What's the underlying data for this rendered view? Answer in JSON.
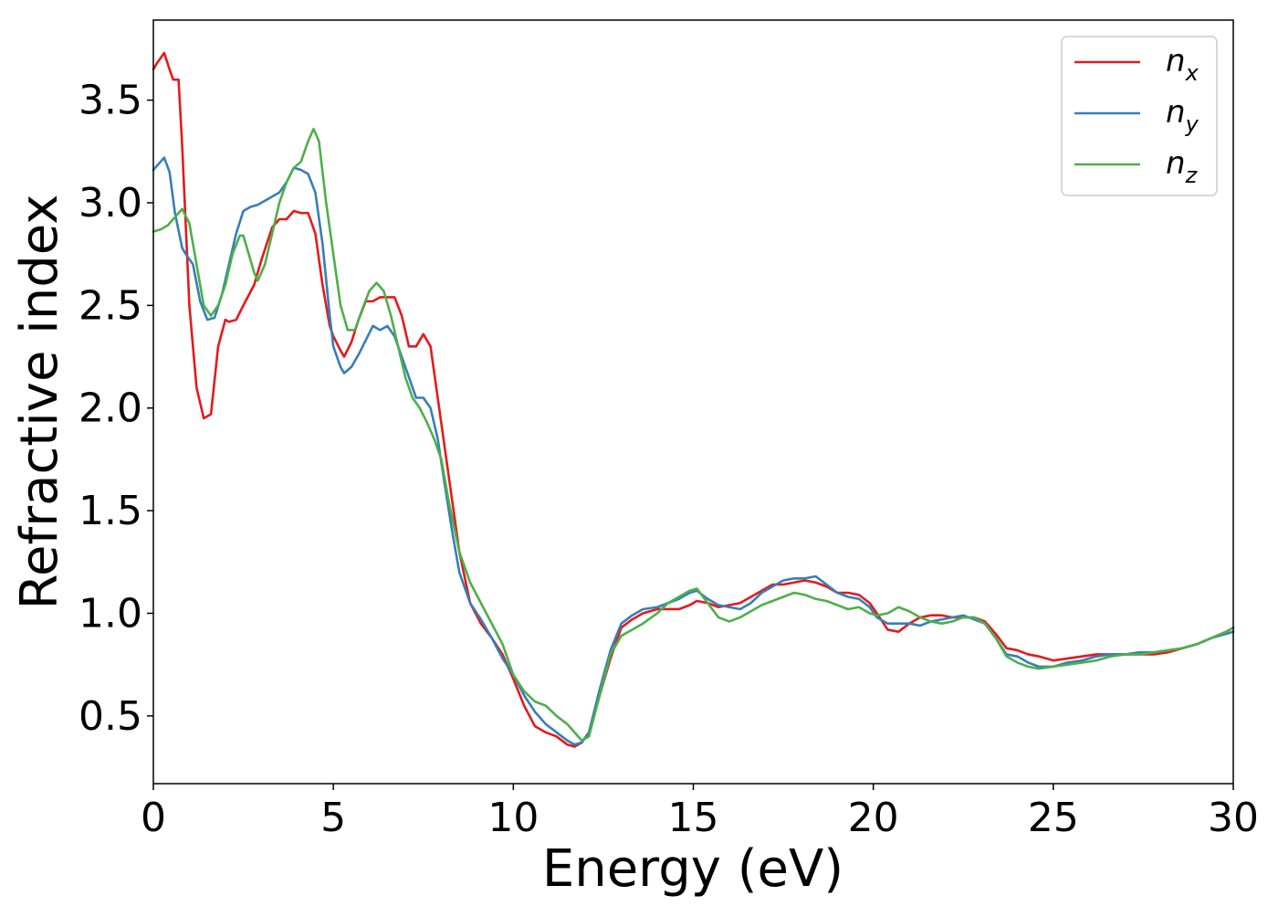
{
  "chart_data": {
    "type": "line",
    "xlabel": "Energy (eV)",
    "ylabel": "Refractive index",
    "xlim": [
      0,
      30
    ],
    "ylim": [
      0.17,
      3.89
    ],
    "x_ticks": [
      0,
      5,
      10,
      15,
      20,
      25,
      30
    ],
    "y_ticks": [
      0.5,
      1.0,
      1.5,
      2.0,
      2.5,
      3.0,
      3.5
    ],
    "x_tick_labels": [
      "0",
      "5",
      "10",
      "15",
      "20",
      "25",
      "30"
    ],
    "y_tick_labels": [
      "0.5",
      "1.0",
      "1.5",
      "2.0",
      "2.5",
      "3.0",
      "3.5"
    ],
    "grid": false,
    "legend_position": "top-right",
    "series": [
      {
        "name": "n_x",
        "label_base": "n",
        "label_sub": "x",
        "color": "#e41a1c",
        "x": [
          0,
          0.1,
          0.3,
          0.45,
          0.55,
          0.7,
          0.8,
          1.0,
          1.2,
          1.4,
          1.6,
          1.8,
          2.0,
          2.1,
          2.3,
          2.5,
          2.8,
          3.0,
          3.3,
          3.5,
          3.7,
          3.9,
          4.1,
          4.3,
          4.5,
          4.7,
          4.9,
          5.0,
          5.2,
          5.3,
          5.5,
          5.7,
          5.9,
          6.1,
          6.3,
          6.5,
          6.7,
          6.9,
          7.1,
          7.3,
          7.5,
          7.7,
          7.9,
          8.1,
          8.3,
          8.5,
          8.8,
          9.1,
          9.4,
          9.7,
          10.0,
          10.3,
          10.6,
          10.9,
          11.2,
          11.5,
          11.7,
          11.9,
          12.1,
          12.4,
          12.7,
          13.0,
          13.3,
          13.6,
          14.0,
          14.3,
          14.6,
          14.9,
          15.1,
          15.4,
          15.7,
          16.0,
          16.3,
          16.6,
          16.9,
          17.2,
          17.5,
          17.8,
          18.1,
          18.4,
          18.7,
          19.0,
          19.3,
          19.6,
          19.9,
          20.1,
          20.4,
          20.7,
          21.0,
          21.3,
          21.6,
          21.9,
          22.2,
          22.5,
          22.8,
          23.1,
          23.4,
          23.7,
          24.0,
          24.3,
          24.6,
          25.0,
          25.4,
          25.8,
          26.2,
          26.6,
          27.0,
          27.4,
          27.8,
          28.2,
          28.6,
          29.0,
          29.4,
          29.8,
          30.0
        ],
        "y": [
          3.65,
          3.68,
          3.73,
          3.65,
          3.6,
          3.6,
          3.28,
          2.5,
          2.1,
          1.95,
          1.97,
          2.3,
          2.43,
          2.42,
          2.43,
          2.5,
          2.6,
          2.72,
          2.88,
          2.92,
          2.92,
          2.96,
          2.95,
          2.95,
          2.85,
          2.6,
          2.4,
          2.35,
          2.28,
          2.25,
          2.32,
          2.43,
          2.52,
          2.52,
          2.54,
          2.54,
          2.54,
          2.45,
          2.3,
          2.3,
          2.36,
          2.3,
          2.05,
          1.8,
          1.55,
          1.3,
          1.05,
          0.95,
          0.88,
          0.8,
          0.68,
          0.55,
          0.45,
          0.42,
          0.4,
          0.36,
          0.35,
          0.37,
          0.42,
          0.6,
          0.78,
          0.93,
          0.97,
          1.0,
          1.02,
          1.02,
          1.02,
          1.04,
          1.06,
          1.05,
          1.03,
          1.04,
          1.05,
          1.08,
          1.11,
          1.14,
          1.14,
          1.15,
          1.16,
          1.15,
          1.13,
          1.1,
          1.1,
          1.09,
          1.05,
          1.0,
          0.92,
          0.91,
          0.95,
          0.98,
          0.99,
          0.99,
          0.98,
          0.98,
          0.98,
          0.96,
          0.9,
          0.83,
          0.82,
          0.8,
          0.79,
          0.77,
          0.78,
          0.79,
          0.8,
          0.8,
          0.8,
          0.8,
          0.8,
          0.81,
          0.83,
          0.85,
          0.88,
          0.91,
          0.93
        ]
      },
      {
        "name": "n_y",
        "label_base": "n",
        "label_sub": "y",
        "color": "#377eb8",
        "x": [
          0,
          0.1,
          0.3,
          0.45,
          0.6,
          0.8,
          0.9,
          1.1,
          1.3,
          1.5,
          1.7,
          1.9,
          2.1,
          2.3,
          2.5,
          2.7,
          2.9,
          3.1,
          3.3,
          3.5,
          3.7,
          3.9,
          4.1,
          4.3,
          4.5,
          4.7,
          4.9,
          5.0,
          5.2,
          5.3,
          5.5,
          5.7,
          5.9,
          6.1,
          6.3,
          6.5,
          6.7,
          6.9,
          7.1,
          7.3,
          7.5,
          7.7,
          7.9,
          8.1,
          8.3,
          8.5,
          8.8,
          9.1,
          9.4,
          9.7,
          10.0,
          10.3,
          10.6,
          10.9,
          11.2,
          11.5,
          11.7,
          11.9,
          12.1,
          12.4,
          12.7,
          13.0,
          13.3,
          13.6,
          14.0,
          14.3,
          14.6,
          14.9,
          15.1,
          15.4,
          15.7,
          16.0,
          16.3,
          16.6,
          16.9,
          17.2,
          17.5,
          17.8,
          18.1,
          18.4,
          18.7,
          19.0,
          19.3,
          19.6,
          19.9,
          20.1,
          20.4,
          20.7,
          21.0,
          21.3,
          21.6,
          21.9,
          22.2,
          22.5,
          22.8,
          23.1,
          23.4,
          23.7,
          24.0,
          24.3,
          24.6,
          25.0,
          25.4,
          25.8,
          26.2,
          26.6,
          27.0,
          27.4,
          27.8,
          28.2,
          28.6,
          29.0,
          29.4,
          29.8,
          30.0
        ],
        "y": [
          3.16,
          3.18,
          3.22,
          3.15,
          2.95,
          2.78,
          2.75,
          2.7,
          2.52,
          2.43,
          2.44,
          2.55,
          2.7,
          2.85,
          2.96,
          2.98,
          2.99,
          3.01,
          3.03,
          3.05,
          3.1,
          3.17,
          3.16,
          3.14,
          3.05,
          2.8,
          2.45,
          2.3,
          2.2,
          2.17,
          2.2,
          2.26,
          2.33,
          2.4,
          2.38,
          2.4,
          2.35,
          2.25,
          2.15,
          2.05,
          2.05,
          2.0,
          1.85,
          1.62,
          1.4,
          1.2,
          1.05,
          0.97,
          0.88,
          0.78,
          0.7,
          0.6,
          0.52,
          0.46,
          0.42,
          0.38,
          0.36,
          0.37,
          0.42,
          0.63,
          0.82,
          0.95,
          0.99,
          1.02,
          1.03,
          1.05,
          1.07,
          1.1,
          1.11,
          1.07,
          1.04,
          1.03,
          1.02,
          1.05,
          1.1,
          1.13,
          1.16,
          1.17,
          1.17,
          1.18,
          1.14,
          1.1,
          1.08,
          1.07,
          1.03,
          0.98,
          0.95,
          0.95,
          0.95,
          0.94,
          0.96,
          0.97,
          0.98,
          0.99,
          0.97,
          0.95,
          0.88,
          0.8,
          0.79,
          0.76,
          0.74,
          0.74,
          0.76,
          0.77,
          0.79,
          0.8,
          0.8,
          0.81,
          0.81,
          0.82,
          0.83,
          0.85,
          0.88,
          0.9,
          0.91
        ]
      },
      {
        "name": "n_z",
        "label_base": "n",
        "label_sub": "z",
        "color": "#4daf4a",
        "x": [
          0,
          0.2,
          0.4,
          0.6,
          0.8,
          1.0,
          1.2,
          1.4,
          1.6,
          1.8,
          2.0,
          2.2,
          2.4,
          2.5,
          2.6,
          2.8,
          2.9,
          3.1,
          3.3,
          3.5,
          3.7,
          3.9,
          4.1,
          4.3,
          4.45,
          4.6,
          4.8,
          5.0,
          5.2,
          5.4,
          5.6,
          5.8,
          6.0,
          6.2,
          6.4,
          6.6,
          6.8,
          7.0,
          7.2,
          7.4,
          7.6,
          7.8,
          8.0,
          8.2,
          8.5,
          8.8,
          9.1,
          9.4,
          9.7,
          10.0,
          10.3,
          10.6,
          10.9,
          11.2,
          11.5,
          11.7,
          11.9,
          12.1,
          12.4,
          12.7,
          13.0,
          13.3,
          13.6,
          14.0,
          14.3,
          14.6,
          14.9,
          15.1,
          15.4,
          15.7,
          16.0,
          16.3,
          16.6,
          16.9,
          17.2,
          17.5,
          17.8,
          18.1,
          18.4,
          18.7,
          19.0,
          19.3,
          19.6,
          19.9,
          20.1,
          20.4,
          20.7,
          21.0,
          21.3,
          21.6,
          21.9,
          22.2,
          22.5,
          22.8,
          23.1,
          23.4,
          23.7,
          24.0,
          24.3,
          24.6,
          25.0,
          25.4,
          25.8,
          26.2,
          26.6,
          27.0,
          27.4,
          27.8,
          28.2,
          28.6,
          29.0,
          29.4,
          29.8,
          30.0
        ],
        "y": [
          2.86,
          2.87,
          2.89,
          2.93,
          2.97,
          2.9,
          2.7,
          2.5,
          2.45,
          2.5,
          2.6,
          2.75,
          2.84,
          2.84,
          2.78,
          2.66,
          2.62,
          2.7,
          2.85,
          3.0,
          3.1,
          3.17,
          3.2,
          3.3,
          3.36,
          3.3,
          3.0,
          2.75,
          2.5,
          2.38,
          2.38,
          2.48,
          2.57,
          2.61,
          2.57,
          2.45,
          2.3,
          2.15,
          2.05,
          2.0,
          1.93,
          1.85,
          1.75,
          1.55,
          1.3,
          1.15,
          1.05,
          0.95,
          0.85,
          0.7,
          0.62,
          0.57,
          0.55,
          0.5,
          0.46,
          0.42,
          0.38,
          0.4,
          0.6,
          0.8,
          0.89,
          0.92,
          0.95,
          1.0,
          1.05,
          1.08,
          1.11,
          1.12,
          1.05,
          0.98,
          0.96,
          0.98,
          1.01,
          1.04,
          1.06,
          1.08,
          1.1,
          1.09,
          1.07,
          1.06,
          1.04,
          1.02,
          1.03,
          1.0,
          0.99,
          1.0,
          1.03,
          1.01,
          0.98,
          0.96,
          0.95,
          0.96,
          0.98,
          0.98,
          0.95,
          0.88,
          0.79,
          0.76,
          0.74,
          0.73,
          0.74,
          0.75,
          0.76,
          0.77,
          0.79,
          0.8,
          0.8,
          0.81,
          0.82,
          0.83,
          0.85,
          0.88,
          0.91,
          0.93
        ]
      }
    ]
  }
}
